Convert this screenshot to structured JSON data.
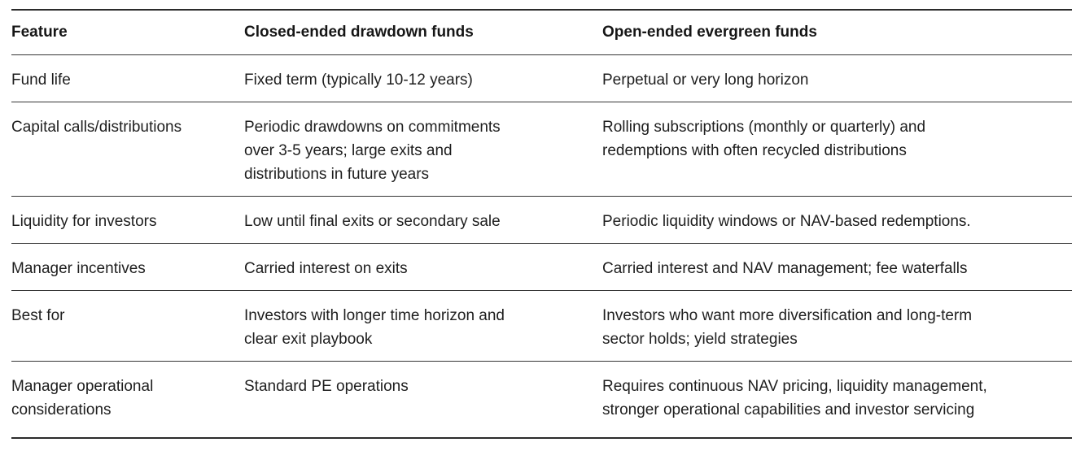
{
  "table": {
    "columns": [
      "Feature",
      "Closed-ended drawdown funds",
      "Open-ended evergreen funds"
    ],
    "rows": [
      {
        "feature": "Fund life",
        "closed_ended": "Fixed term (typically 10-12 years)",
        "open_ended": "Perpetual or very long horizon"
      },
      {
        "feature": "Capital calls/distributions",
        "closed_ended": "Periodic drawdowns on commitments over 3-5 years; large exits and distributions in future years",
        "open_ended": "Rolling subscriptions (monthly or quarterly) and redemptions with often recycled distributions"
      },
      {
        "feature": "Liquidity for investors",
        "closed_ended": "Low until final exits or secondary sale",
        "open_ended": "Periodic liquidity windows or NAV-based redemptions."
      },
      {
        "feature": "Manager incentives",
        "closed_ended": "Carried interest on exits",
        "open_ended": "Carried interest and NAV management; fee waterfalls"
      },
      {
        "feature": "Best for",
        "closed_ended": "Investors with longer time horizon and clear exit playbook",
        "open_ended": "Investors who want more diversification and long-term sector holds; yield strategies"
      },
      {
        "feature": "Manager operational considerations",
        "closed_ended": "Standard PE operations",
        "open_ended": "Requires continuous NAV pricing, liquidity management, stronger operational capabilities and investor servicing"
      }
    ],
    "colors": {
      "text": "#1e1e1e",
      "rule": "#363636",
      "background": "#ffffff"
    }
  }
}
